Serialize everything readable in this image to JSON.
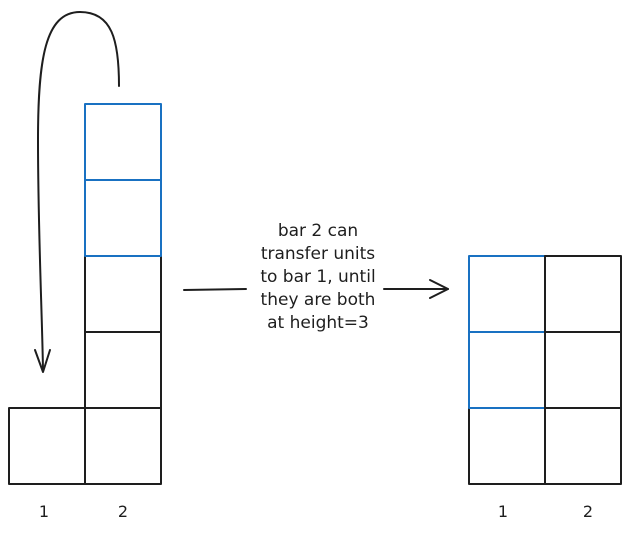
{
  "colors": {
    "stroke": "#1e1e1e",
    "moved": "#1971c2",
    "background": "#ffffff"
  },
  "caption": {
    "lines": [
      "bar 2 can",
      "transfer units",
      "to bar 1, until",
      "they are both",
      "at height=3"
    ]
  },
  "before": {
    "bars": [
      {
        "label": "1",
        "units": 1,
        "moved_units": 0
      },
      {
        "label": "2",
        "units": 5,
        "moved_units": 2
      }
    ]
  },
  "after": {
    "bars": [
      {
        "label": "1",
        "units": 3,
        "moved_units": 2
      },
      {
        "label": "2",
        "units": 3,
        "moved_units": 0
      }
    ]
  }
}
